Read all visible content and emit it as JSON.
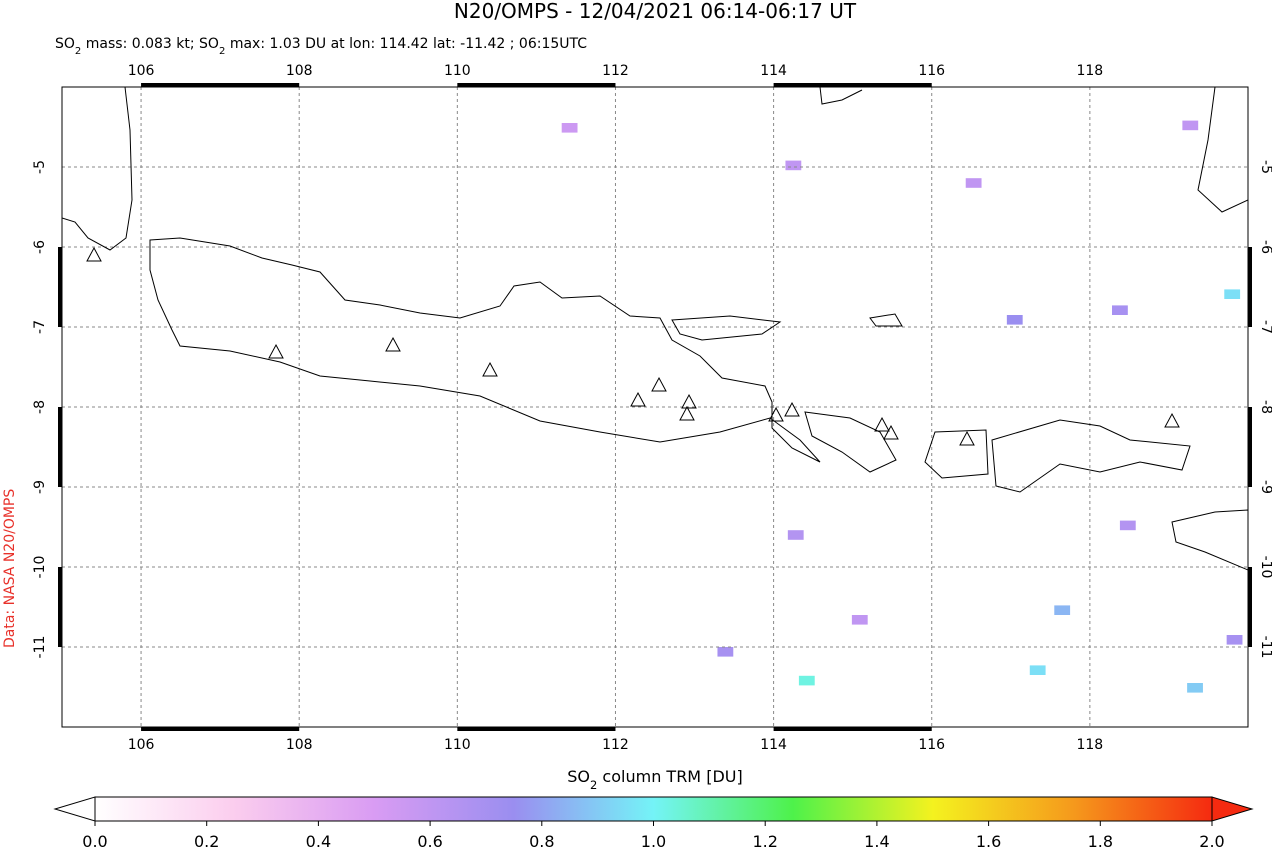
{
  "chart_data": {
    "type": "map",
    "title": "N20/OMPS - 12/04/2021 06:14-06:17 UT",
    "subtitle_parts": [
      {
        "text": "SO"
      },
      {
        "text": "2",
        "sub": true
      },
      {
        "text": " mass: 0.083 kt; SO"
      },
      {
        "text": "2",
        "sub": true
      },
      {
        "text": " max: 1.03 DU at lon: 114.42 lat: -11.42 ; 06:15UTC"
      }
    ],
    "credit": "Data: NASA N20/OMPS",
    "credit_color": "#e8312a",
    "xlim": [
      105,
      120
    ],
    "ylim": [
      -12,
      -4
    ],
    "xticks": [
      106,
      108,
      110,
      112,
      114,
      116,
      118
    ],
    "yticks": [
      -5,
      -6,
      -7,
      -8,
      -9,
      -10,
      -11
    ],
    "grid": true,
    "pixels": {
      "lon": [
        114.42,
        119.8,
        117.34,
        119.33,
        117.65,
        117.05,
        118.38,
        119.83,
        114.28,
        113.39,
        115.09,
        118.48,
        119.27,
        116.53,
        111.42,
        114.25
      ],
      "lat": [
        -11.42,
        -6.59,
        -11.29,
        -11.51,
        -10.54,
        -6.91,
        -6.79,
        -10.91,
        -9.6,
        -11.06,
        -10.66,
        -9.48,
        -4.48,
        -5.2,
        -4.51,
        -4.98
      ],
      "values": [
        1.03,
        0.95,
        0.95,
        0.9,
        0.85,
        0.75,
        0.7,
        0.7,
        0.65,
        0.7,
        0.6,
        0.65,
        0.6,
        0.6,
        0.55,
        0.6
      ]
    },
    "colorbar": {
      "label_parts": [
        {
          "text": "SO"
        },
        {
          "text": "2",
          "sub": true
        },
        {
          "text": " column TRM [DU]"
        }
      ],
      "lim": [
        0,
        2
      ],
      "ticks": [
        {
          "value": 0,
          "label": "0.0"
        },
        0.2,
        0.4,
        0.6,
        0.8,
        {
          "value": 1,
          "label": "1.0"
        },
        1.2,
        1.4,
        1.6,
        1.8,
        {
          "value": 2,
          "label": "2.0"
        }
      ],
      "colors": [
        "#ffffff",
        "#fbcdee",
        "#d99cf3",
        "#9a8ef0",
        "#74f3f7",
        "#4ef24a",
        "#f4f21f",
        "#f59a1c",
        "#f52a10"
      ]
    }
  }
}
